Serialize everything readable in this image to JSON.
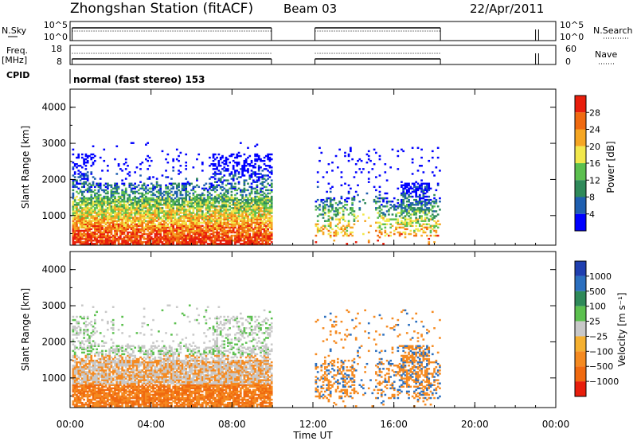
{
  "header": {
    "station": "Zhongshan Station (fitACF)",
    "beam": "Beam 03",
    "date": "22/Apr/2011"
  },
  "panels": {
    "noise": {
      "left_label": "N.Sky",
      "right_label": "N.Search",
      "left_ticks": [
        "10^5",
        "10^0"
      ],
      "right_ticks": [
        "10^5",
        "10^0"
      ]
    },
    "freq": {
      "left_label_1": "Freq.",
      "left_label_2": "[MHz]",
      "right_label": "Nave",
      "left_ticks": [
        "18",
        "8"
      ],
      "right_ticks": [
        "60",
        "0"
      ]
    },
    "cpid": {
      "label": "CPID",
      "text": "normal (fast stereo) 153"
    }
  },
  "x_axis": {
    "title": "Time UT",
    "ticks": [
      "00:00",
      "04:00",
      "08:00",
      "12:00",
      "16:00",
      "20:00",
      "00:00"
    ]
  },
  "chart_data": [
    {
      "type": "heatmap",
      "name": "power",
      "ylabel": "Slant Range [km]",
      "xlabel": "Time UT",
      "xlim": [
        0,
        24
      ],
      "ylim": [
        180,
        4500
      ],
      "yticks": [
        1000,
        2000,
        3000,
        4000
      ],
      "colorbar": {
        "title": "Power [dB]",
        "ticks": [
          "4",
          "8",
          "12",
          "16",
          "20",
          "24",
          "28"
        ],
        "colors": [
          "#0000ff",
          "#1f5fb0",
          "#2f8a5a",
          "#5cc04f",
          "#f2e84c",
          "#f5a623",
          "#f06a10",
          "#e81e0c"
        ]
      },
      "data_windows": [
        {
          "start": 0.0,
          "end": 10.0
        },
        {
          "start": 12.0,
          "end": 18.3
        },
        {
          "start": 22.9,
          "end": 23.0
        }
      ]
    },
    {
      "type": "heatmap",
      "name": "velocity",
      "ylabel": "Slant Range [km]",
      "xlabel": "Time UT",
      "xlim": [
        0,
        24
      ],
      "ylim": [
        180,
        4500
      ],
      "yticks": [
        1000,
        2000,
        3000,
        4000
      ],
      "colorbar": {
        "title": "Velocity [m s⁻¹]",
        "ticks": [
          "1000",
          "500",
          "100",
          "25",
          "−25",
          "−100",
          "−500",
          "−1000"
        ],
        "colors": [
          "#1f3fb0",
          "#2b6fbf",
          "#2f8a5a",
          "#5cc04f",
          "#c8c8c8",
          "#f5b030",
          "#f58a20",
          "#f06a10",
          "#e81e0c"
        ]
      }
    }
  ]
}
